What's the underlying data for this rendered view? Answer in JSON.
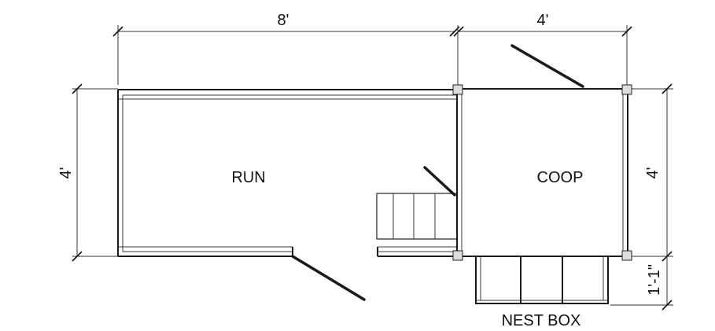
{
  "dimensions": {
    "run_width": "8'",
    "coop_width": "4'",
    "run_height": "4'",
    "coop_height": "4'",
    "nest_box_depth": "1'-1\""
  },
  "rooms": {
    "run": "RUN",
    "coop": "COOP",
    "nest_box": "NEST BOX"
  }
}
